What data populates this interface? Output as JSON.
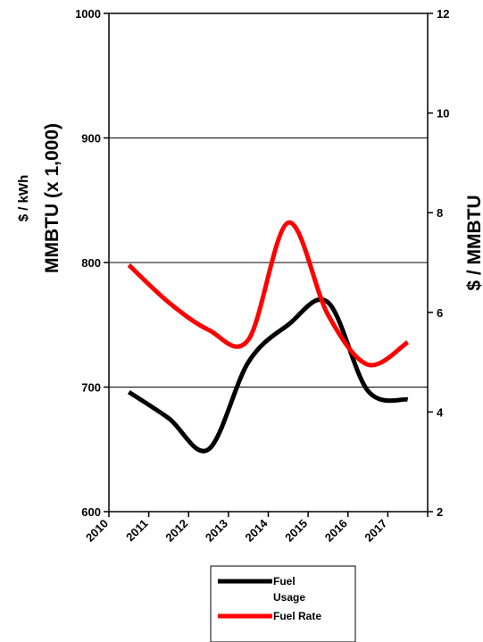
{
  "chart_data": {
    "type": "line",
    "categories": [
      "2010",
      "2011",
      "2012",
      "2013",
      "2014",
      "2015",
      "2016",
      "2017"
    ],
    "y_left": {
      "label_line1": "$ / kWh",
      "label_line2": "MMBTU (x 1,000)",
      "ylim": [
        600,
        1000
      ],
      "ticks": [
        "600",
        "700",
        "800",
        "900",
        "1000"
      ]
    },
    "y_right": {
      "label": "$ / MMBTU",
      "ylim": [
        2,
        12
      ],
      "ticks": [
        "2",
        "4",
        "6",
        "8",
        "10",
        "12"
      ]
    },
    "grid": "horizontal at left-axis major ticks",
    "legend_placement": "bottom-center",
    "series": [
      {
        "name": "Fuel Usage",
        "axis": "left",
        "color": "#000000",
        "x": [
          2010.5,
          2011.5,
          2012.5,
          2013.5,
          2014.5,
          2015.5,
          2016.5,
          2017.5
        ],
        "values": [
          696,
          675,
          650,
          720,
          750,
          768,
          697,
          690
        ]
      },
      {
        "name": "Fuel Rate",
        "axis": "right",
        "color": "#ff0000",
        "x": [
          2010.5,
          2011.5,
          2012.5,
          2013.5,
          2014.5,
          2015.5,
          2016.5,
          2017.5
        ],
        "values": [
          6.95,
          6.2,
          5.65,
          5.45,
          7.8,
          5.95,
          4.95,
          5.4
        ]
      }
    ],
    "legend": [
      {
        "label_line1": "Fuel",
        "label_line2": "Usage",
        "color": "#000000"
      },
      {
        "label_line1": "Fuel Rate",
        "label_line2": "",
        "color": "#ff0000"
      }
    ]
  }
}
